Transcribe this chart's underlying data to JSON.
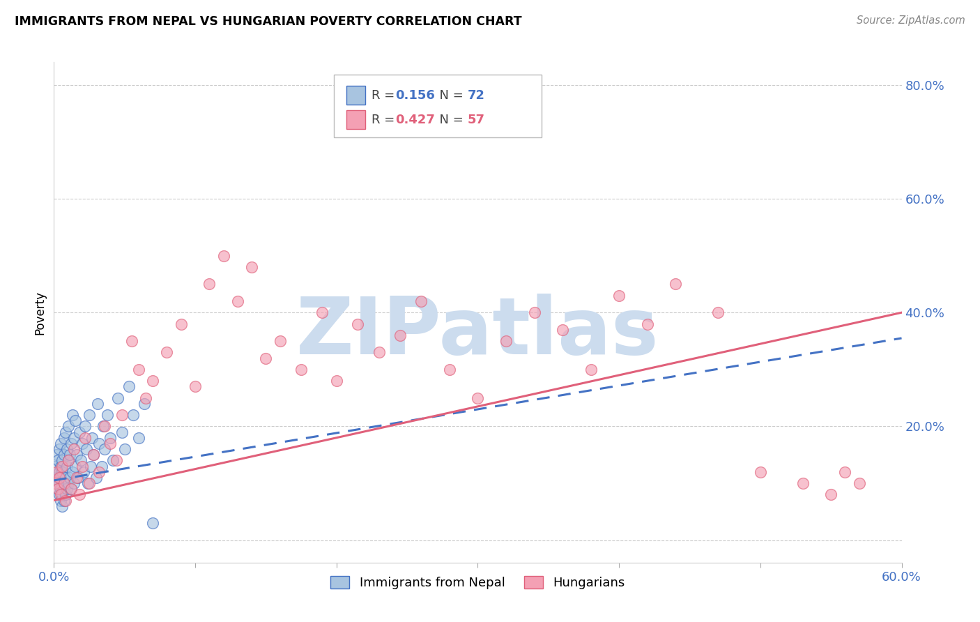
{
  "title": "IMMIGRANTS FROM NEPAL VS HUNGARIAN POVERTY CORRELATION CHART",
  "source": "Source: ZipAtlas.com",
  "ylabel": "Poverty",
  "xlim": [
    0.0,
    0.6
  ],
  "ylim": [
    -0.04,
    0.84
  ],
  "yticks": [
    0.0,
    0.2,
    0.4,
    0.6,
    0.8
  ],
  "ytick_labels": [
    "",
    "20.0%",
    "40.0%",
    "60.0%",
    "80.0%"
  ],
  "xticks": [
    0.0,
    0.1,
    0.2,
    0.3,
    0.4,
    0.5,
    0.6
  ],
  "xtick_labels": [
    "0.0%",
    "",
    "",
    "",
    "",
    "",
    "60.0%"
  ],
  "blue_R": 0.156,
  "blue_N": 72,
  "pink_R": 0.427,
  "pink_N": 57,
  "blue_color": "#a8c4e0",
  "pink_color": "#f4a0b4",
  "blue_line_color": "#4472c4",
  "pink_line_color": "#e0607a",
  "watermark": "ZIPatlas",
  "watermark_color": "#ccdcee",
  "legend_label_blue": "Immigrants from Nepal",
  "legend_label_pink": "Hungarians",
  "background_color": "#ffffff",
  "blue_x": [
    0.001,
    0.002,
    0.002,
    0.003,
    0.003,
    0.003,
    0.004,
    0.004,
    0.004,
    0.004,
    0.005,
    0.005,
    0.005,
    0.005,
    0.005,
    0.006,
    0.006,
    0.006,
    0.006,
    0.007,
    0.007,
    0.007,
    0.007,
    0.008,
    0.008,
    0.008,
    0.009,
    0.009,
    0.009,
    0.01,
    0.01,
    0.01,
    0.011,
    0.011,
    0.012,
    0.012,
    0.013,
    0.013,
    0.014,
    0.014,
    0.015,
    0.015,
    0.016,
    0.017,
    0.018,
    0.019,
    0.02,
    0.021,
    0.022,
    0.023,
    0.024,
    0.025,
    0.026,
    0.027,
    0.028,
    0.03,
    0.031,
    0.032,
    0.034,
    0.035,
    0.036,
    0.038,
    0.04,
    0.042,
    0.045,
    0.048,
    0.05,
    0.053,
    0.056,
    0.06,
    0.064,
    0.07
  ],
  "blue_y": [
    0.13,
    0.1,
    0.15,
    0.09,
    0.11,
    0.14,
    0.08,
    0.1,
    0.12,
    0.16,
    0.07,
    0.09,
    0.11,
    0.13,
    0.17,
    0.06,
    0.08,
    0.12,
    0.14,
    0.07,
    0.1,
    0.15,
    0.18,
    0.08,
    0.11,
    0.19,
    0.09,
    0.13,
    0.16,
    0.1,
    0.14,
    0.2,
    0.11,
    0.15,
    0.09,
    0.17,
    0.12,
    0.22,
    0.1,
    0.18,
    0.13,
    0.21,
    0.15,
    0.11,
    0.19,
    0.14,
    0.17,
    0.12,
    0.2,
    0.16,
    0.1,
    0.22,
    0.13,
    0.18,
    0.15,
    0.11,
    0.24,
    0.17,
    0.13,
    0.2,
    0.16,
    0.22,
    0.18,
    0.14,
    0.25,
    0.19,
    0.16,
    0.27,
    0.22,
    0.18,
    0.24,
    0.03
  ],
  "pink_x": [
    0.001,
    0.002,
    0.003,
    0.004,
    0.005,
    0.006,
    0.007,
    0.008,
    0.01,
    0.012,
    0.014,
    0.016,
    0.018,
    0.02,
    0.022,
    0.025,
    0.028,
    0.032,
    0.036,
    0.04,
    0.044,
    0.048,
    0.055,
    0.06,
    0.065,
    0.07,
    0.08,
    0.09,
    0.1,
    0.11,
    0.12,
    0.13,
    0.14,
    0.15,
    0.16,
    0.175,
    0.19,
    0.2,
    0.215,
    0.23,
    0.245,
    0.26,
    0.28,
    0.3,
    0.32,
    0.34,
    0.36,
    0.38,
    0.4,
    0.42,
    0.44,
    0.47,
    0.5,
    0.53,
    0.55,
    0.56,
    0.57
  ],
  "pink_y": [
    0.1,
    0.12,
    0.09,
    0.11,
    0.08,
    0.13,
    0.1,
    0.07,
    0.14,
    0.09,
    0.16,
    0.11,
    0.08,
    0.13,
    0.18,
    0.1,
    0.15,
    0.12,
    0.2,
    0.17,
    0.14,
    0.22,
    0.35,
    0.3,
    0.25,
    0.28,
    0.33,
    0.38,
    0.27,
    0.45,
    0.5,
    0.42,
    0.48,
    0.32,
    0.35,
    0.3,
    0.4,
    0.28,
    0.38,
    0.33,
    0.36,
    0.42,
    0.3,
    0.25,
    0.35,
    0.4,
    0.37,
    0.3,
    0.43,
    0.38,
    0.45,
    0.4,
    0.12,
    0.1,
    0.08,
    0.12,
    0.1
  ],
  "blue_trend": [
    0.0,
    0.6,
    0.105,
    0.355
  ],
  "pink_trend": [
    0.0,
    0.6,
    0.07,
    0.4
  ]
}
